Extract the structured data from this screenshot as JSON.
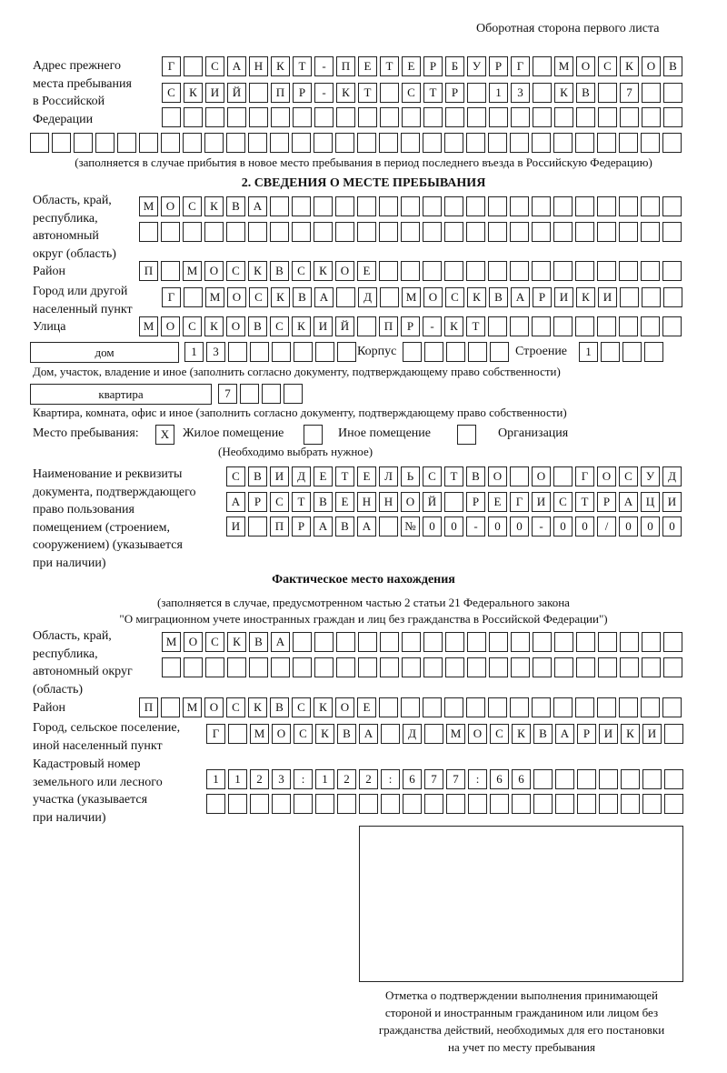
{
  "page_header": "Оборотная сторона первого листа",
  "prev_address": {
    "label": "Адрес прежнего\nместа пребывания\nв Российской\nФедерации",
    "rows": [
      [
        "Г",
        "",
        "С",
        "А",
        "Н",
        "К",
        "Т",
        "-",
        "П",
        "Е",
        "Т",
        "Е",
        "Р",
        "Б",
        "У",
        "Р",
        "Г",
        "",
        "М",
        "О",
        "С",
        "К",
        "О",
        "В"
      ],
      [
        "С",
        "К",
        "И",
        "Й",
        "",
        "П",
        "Р",
        "-",
        "К",
        "Т",
        "",
        "С",
        "Т",
        "Р",
        "",
        "1",
        "3",
        "",
        "К",
        "В",
        "",
        "7",
        "",
        ""
      ],
      [
        "",
        "",
        "",
        "",
        "",
        "",
        "",
        "",
        "",
        "",
        "",
        "",
        "",
        "",
        "",
        "",
        "",
        "",
        "",
        "",
        "",
        "",
        "",
        ""
      ],
      [
        "",
        "",
        "",
        "",
        "",
        "",
        "",
        "",
        "",
        "",
        "",
        "",
        "",
        "",
        "",
        "",
        "",
        "",
        "",
        "",
        "",
        "",
        "",
        "",
        "",
        "",
        "",
        "",
        "",
        ""
      ]
    ],
    "note": "(заполняется в случае прибытия в новое место пребывания в период последнего въезда в Российскую Федерацию)"
  },
  "section2": {
    "heading": "2. СВЕДЕНИЯ О МЕСТЕ ПРЕБЫВАНИЯ",
    "region_label": "Область, край,\nреспублика,\nавтономный\nокруг (область)",
    "region_rows": [
      [
        "М",
        "О",
        "С",
        "К",
        "В",
        "А",
        "",
        "",
        "",
        "",
        "",
        "",
        "",
        "",
        "",
        "",
        "",
        "",
        "",
        "",
        "",
        "",
        "",
        "",
        ""
      ],
      [
        "",
        "",
        "",
        "",
        "",
        "",
        "",
        "",
        "",
        "",
        "",
        "",
        "",
        "",
        "",
        "",
        "",
        "",
        "",
        "",
        "",
        "",
        "",
        "",
        ""
      ]
    ],
    "district_label": "Район",
    "district_row": [
      "П",
      "",
      "М",
      "О",
      "С",
      "К",
      "В",
      "С",
      "К",
      "О",
      "Е",
      "",
      "",
      "",
      "",
      "",
      "",
      "",
      "",
      "",
      "",
      "",
      "",
      "",
      ""
    ],
    "city_label": "Город или другой\nнаселенный пункт",
    "city_row": [
      "Г",
      "",
      "М",
      "О",
      "С",
      "К",
      "В",
      "А",
      "",
      "Д",
      "",
      "М",
      "О",
      "С",
      "К",
      "В",
      "А",
      "Р",
      "И",
      "К",
      "И",
      "",
      "",
      ""
    ],
    "street_label": "Улица",
    "street_row": [
      "М",
      "О",
      "С",
      "К",
      "О",
      "В",
      "С",
      "К",
      "И",
      "Й",
      "",
      "П",
      "Р",
      "-",
      "К",
      "Т",
      "",
      "",
      "",
      "",
      "",
      "",
      "",
      "",
      ""
    ],
    "house_type": "дом",
    "house_cells": [
      "1",
      "3",
      "",
      "",
      "",
      "",
      "",
      ""
    ],
    "korpus_label": "Корпус",
    "korpus_cells": [
      "",
      "",
      "",
      "",
      ""
    ],
    "building_label": "Строение",
    "building_cells": [
      "1",
      "",
      "",
      ""
    ],
    "house_note": "Дом, участок, владение и иное (заполнить согласно документу, подтверждающему право собственности)",
    "flat_type": "квартира",
    "flat_cells": [
      "7",
      "",
      "",
      ""
    ],
    "flat_note": "Квартира, комната, офис и иное (заполнить согласно документу, подтверждающему право собственности)",
    "stay_place_label": "Место пребывания:",
    "stay_options": [
      {
        "mark": "X",
        "label": "Жилое помещение"
      },
      {
        "mark": "",
        "label": "Иное помещение"
      },
      {
        "mark": "",
        "label": "Организация"
      }
    ],
    "stay_note": "(Необходимо выбрать нужное)",
    "doc_label": "Наименование и реквизиты\nдокумента, подтверждающего\nправо пользования\nпомещением (строением,\nсооружением) (указывается\nпри наличии)",
    "doc_rows": [
      [
        "С",
        "В",
        "И",
        "Д",
        "Е",
        "Т",
        "Е",
        "Л",
        "Ь",
        "С",
        "Т",
        "В",
        "О",
        "",
        "О",
        "",
        "Г",
        "О",
        "С",
        "У",
        "Д"
      ],
      [
        "А",
        "Р",
        "С",
        "Т",
        "В",
        "Е",
        "Н",
        "Н",
        "О",
        "Й",
        "",
        "Р",
        "Е",
        "Г",
        "И",
        "С",
        "Т",
        "Р",
        "А",
        "Ц",
        "И"
      ],
      [
        "И",
        "",
        "П",
        "Р",
        "А",
        "В",
        "А",
        "",
        "№",
        "0",
        "0",
        "-",
        "0",
        "0",
        "-",
        "0",
        "0",
        "/",
        "0",
        "0",
        "0"
      ]
    ]
  },
  "actual": {
    "heading": "Фактическое место нахождения",
    "note1": "(заполняется в случае, предусмотренном частью 2 статьи 21 Федерального закона",
    "note2": "\"О миграционном учете иностранных граждан и лиц без гражданства в Российской Федерации\")",
    "region_label": "Область, край,\nреспублика,\nавтономный округ\n(область)",
    "region_rows": [
      [
        "М",
        "О",
        "С",
        "К",
        "В",
        "А",
        "",
        "",
        "",
        "",
        "",
        "",
        "",
        "",
        "",
        "",
        "",
        "",
        "",
        "",
        "",
        "",
        "",
        ""
      ],
      [
        "",
        "",
        "",
        "",
        "",
        "",
        "",
        "",
        "",
        "",
        "",
        "",
        "",
        "",
        "",
        "",
        "",
        "",
        "",
        "",
        "",
        "",
        "",
        ""
      ]
    ],
    "district_label": "Район",
    "district_row": [
      "П",
      "",
      "М",
      "О",
      "С",
      "К",
      "В",
      "С",
      "К",
      "О",
      "Е",
      "",
      "",
      "",
      "",
      "",
      "",
      "",
      "",
      "",
      "",
      "",
      "",
      "",
      ""
    ],
    "city_label": "Город, сельское поселение,\nиной населенный пункт",
    "city_row": [
      "Г",
      "",
      "М",
      "О",
      "С",
      "К",
      "В",
      "А",
      "",
      "Д",
      "",
      "М",
      "О",
      "С",
      "К",
      "В",
      "А",
      "Р",
      "И",
      "К",
      "И",
      ""
    ],
    "cadastre_label": "Кадастровый номер\nземельного или лесного\nучастка (указывается\nпри наличии)",
    "cadastre_rows": [
      [
        "1",
        "1",
        "2",
        "3",
        ":",
        "1",
        "2",
        "2",
        ":",
        "6",
        "7",
        "7",
        ":",
        "6",
        "6",
        "",
        "",
        "",
        "",
        "",
        "",
        ""
      ],
      [
        "",
        "",
        "",
        "",
        "",
        "",
        "",
        "",
        "",
        "",
        "",
        "",
        "",
        "",
        "",
        "",
        "",
        "",
        "",
        "",
        "",
        ""
      ]
    ]
  },
  "stamp_caption": "Отметка о подтверждении выполнения принимающей\nстороной и иностранным гражданином или лицом без\nгражданства действий, необходимых для его постановки\nна учет по месту пребывания"
}
